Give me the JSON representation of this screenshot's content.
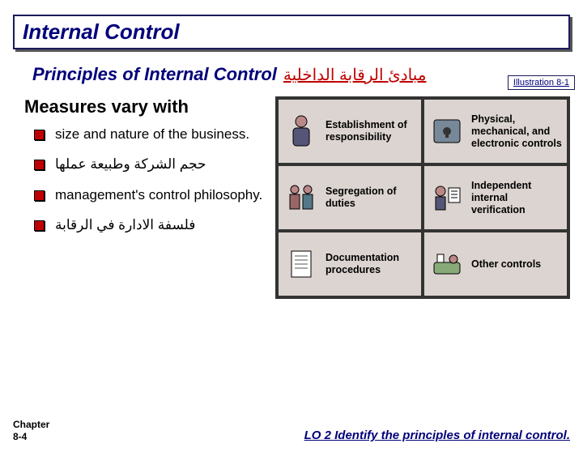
{
  "title": "Internal Control",
  "subtitle_en": "Principles of Internal Control",
  "subtitle_ar": "مبادئ الرقابة الداخلية",
  "illustration_label": "Illustration 8-1",
  "measures_title": "Measures vary with",
  "bullets": [
    "size and nature of the business.",
    "حجم الشركة وطبيعة عملها",
    "management's control philosophy.",
    "فلسفة الادارة في الرقابة"
  ],
  "grid": [
    {
      "label": "Establishment of responsibility"
    },
    {
      "label": "Physical, mechanical, and electronic controls"
    },
    {
      "label": "Segregation of duties"
    },
    {
      "label": "Independent internal verification"
    },
    {
      "label": "Documentation procedures"
    },
    {
      "label": "Other controls"
    }
  ],
  "chapter": "Chapter\n8-4",
  "lo_text": "LO 2  Identify the principles of internal control.",
  "colors": {
    "title_text": "#00007a",
    "accent_red": "#c00000",
    "cell_bg": "#dcd4d0"
  }
}
